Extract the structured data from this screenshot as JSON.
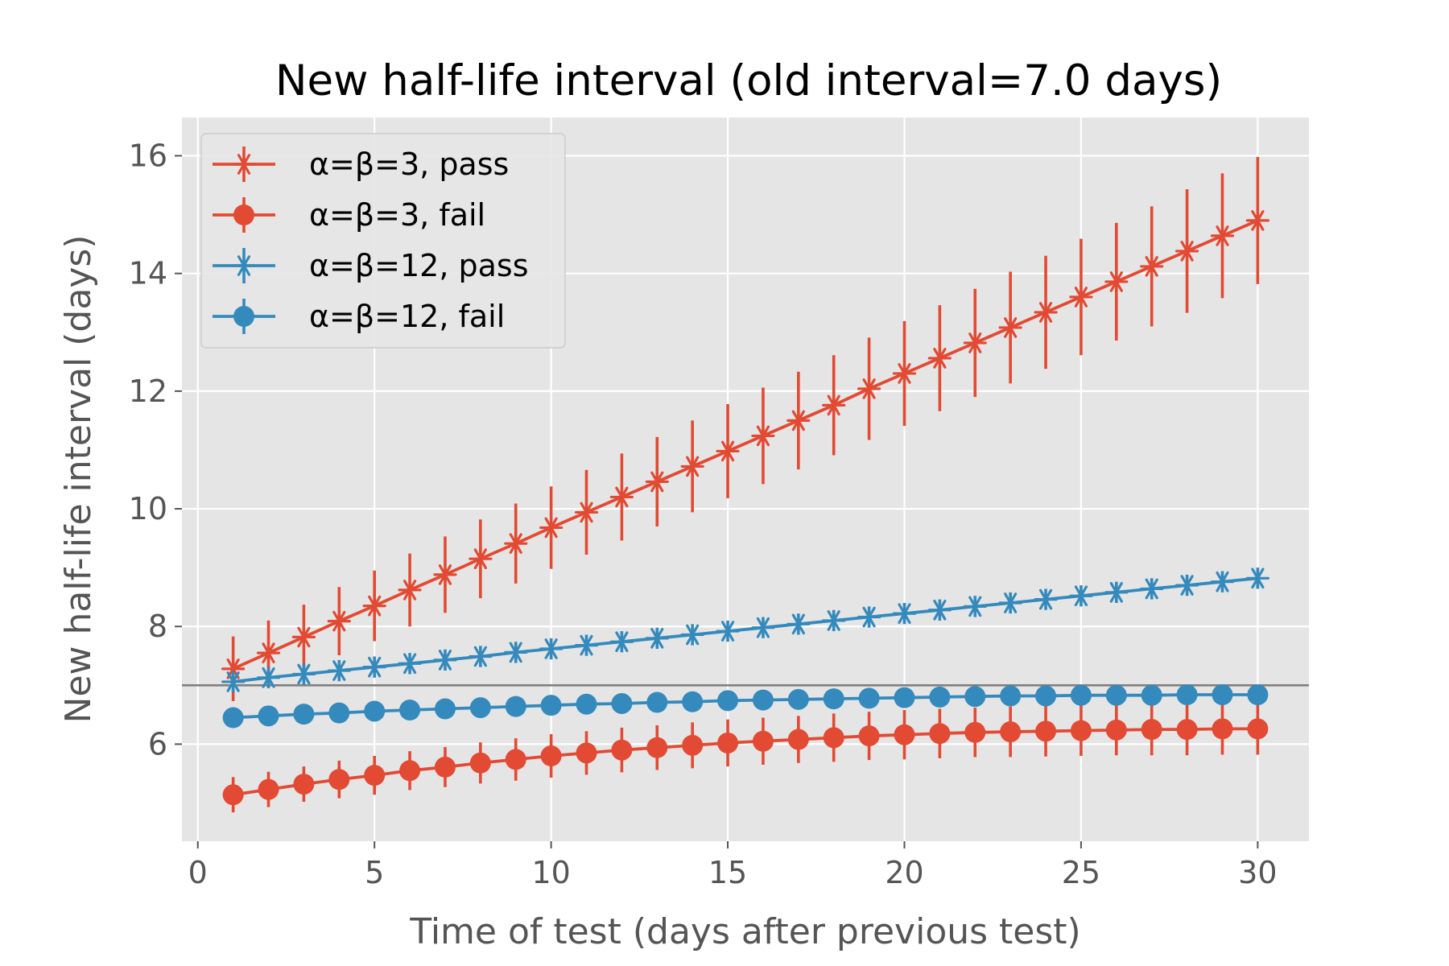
{
  "chart_data": {
    "type": "line",
    "title": "New half-life interval (old interval=7.0 days)",
    "xlabel": "Time of test (days after previous test)",
    "ylabel": "New half-life interval (days)",
    "xlim": [
      -0.45,
      31.45
    ],
    "ylim": [
      4.35,
      16.65
    ],
    "xticks": [
      0,
      5,
      10,
      15,
      20,
      25,
      30
    ],
    "yticks": [
      6,
      8,
      10,
      12,
      14,
      16
    ],
    "grid": true,
    "legend_position": "upper-left",
    "reference_line": {
      "y": 7.0,
      "color": "#808080"
    },
    "x": [
      1,
      2,
      3,
      4,
      5,
      6,
      7,
      8,
      9,
      10,
      11,
      12,
      13,
      14,
      15,
      16,
      17,
      18,
      19,
      20,
      21,
      22,
      23,
      24,
      25,
      26,
      27,
      28,
      29,
      30
    ],
    "series": [
      {
        "name": "α=β=3, pass",
        "color": "#E24A33",
        "marker": "x-star",
        "values": [
          7.28,
          7.55,
          7.82,
          8.09,
          8.35,
          8.62,
          8.88,
          9.15,
          9.41,
          9.68,
          9.94,
          10.2,
          10.46,
          10.72,
          10.98,
          11.24,
          11.5,
          11.76,
          12.04,
          12.3,
          12.56,
          12.82,
          13.08,
          13.34,
          13.6,
          13.86,
          14.12,
          14.38,
          14.64,
          14.9
        ],
        "errors": [
          0.55,
          0.55,
          0.55,
          0.58,
          0.6,
          0.62,
          0.65,
          0.67,
          0.68,
          0.7,
          0.72,
          0.74,
          0.76,
          0.78,
          0.8,
          0.82,
          0.83,
          0.85,
          0.87,
          0.89,
          0.9,
          0.92,
          0.95,
          0.96,
          0.99,
          1.0,
          1.02,
          1.05,
          1.06,
          1.08
        ]
      },
      {
        "name": "α=β=3, fail",
        "color": "#E24A33",
        "marker": "circle",
        "values": [
          5.14,
          5.23,
          5.32,
          5.4,
          5.47,
          5.55,
          5.61,
          5.68,
          5.74,
          5.8,
          5.85,
          5.9,
          5.94,
          5.98,
          6.02,
          6.05,
          6.08,
          6.11,
          6.14,
          6.16,
          6.18,
          6.2,
          6.21,
          6.22,
          6.23,
          6.24,
          6.25,
          6.25,
          6.26,
          6.26
        ],
        "errors": [
          0.3,
          0.3,
          0.3,
          0.32,
          0.33,
          0.33,
          0.34,
          0.35,
          0.36,
          0.37,
          0.37,
          0.38,
          0.38,
          0.39,
          0.4,
          0.4,
          0.4,
          0.41,
          0.41,
          0.42,
          0.42,
          0.42,
          0.43,
          0.43,
          0.43,
          0.43,
          0.44,
          0.44,
          0.44,
          0.44
        ]
      },
      {
        "name": "α=β=12, pass",
        "color": "#348ABD",
        "marker": "x-star",
        "values": [
          7.06,
          7.13,
          7.19,
          7.25,
          7.31,
          7.37,
          7.43,
          7.49,
          7.56,
          7.62,
          7.68,
          7.74,
          7.8,
          7.86,
          7.92,
          7.98,
          8.04,
          8.1,
          8.16,
          8.22,
          8.28,
          8.34,
          8.4,
          8.46,
          8.52,
          8.58,
          8.64,
          8.7,
          8.76,
          8.82
        ],
        "errors": [
          0.18,
          0.18,
          0.18,
          0.18,
          0.18,
          0.18,
          0.18,
          0.18,
          0.18,
          0.18,
          0.18,
          0.18,
          0.18,
          0.18,
          0.18,
          0.18,
          0.18,
          0.18,
          0.18,
          0.18,
          0.18,
          0.18,
          0.18,
          0.18,
          0.18,
          0.18,
          0.18,
          0.18,
          0.18,
          0.18
        ]
      },
      {
        "name": "α=β=12, fail",
        "color": "#348ABD",
        "marker": "circle",
        "values": [
          6.45,
          6.48,
          6.51,
          6.53,
          6.56,
          6.58,
          6.6,
          6.62,
          6.64,
          6.66,
          6.68,
          6.69,
          6.71,
          6.72,
          6.74,
          6.75,
          6.76,
          6.77,
          6.78,
          6.79,
          6.8,
          6.81,
          6.82,
          6.82,
          6.83,
          6.83,
          6.83,
          6.84,
          6.84,
          6.84
        ],
        "errors": [
          0.12,
          0.12,
          0.12,
          0.12,
          0.12,
          0.12,
          0.12,
          0.12,
          0.12,
          0.12,
          0.12,
          0.12,
          0.12,
          0.12,
          0.12,
          0.12,
          0.12,
          0.12,
          0.12,
          0.12,
          0.12,
          0.12,
          0.12,
          0.12,
          0.12,
          0.12,
          0.12,
          0.12,
          0.12,
          0.12
        ]
      }
    ]
  }
}
